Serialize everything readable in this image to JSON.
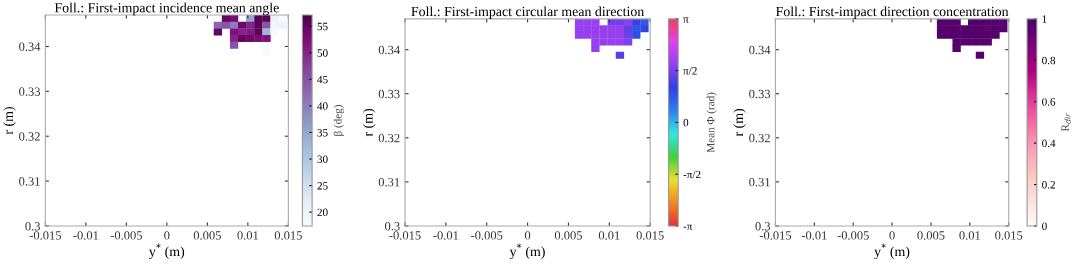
{
  "chart_data": [
    {
      "type": "scatter",
      "marker": "square",
      "title": "Foll.: First-impact incidence mean angle",
      "xlabel": "y$^{*}$ (m)",
      "ylabel": "r (m)",
      "clabel": "β (deg)",
      "x": [
        0.0073,
        0.0083,
        0.0103,
        0.0113,
        0.0123,
        0.0133,
        0.0143,
        0.0063,
        0.0073,
        0.0083,
        0.0093,
        0.0103,
        0.0113,
        0.0123,
        0.0133,
        0.0143,
        0.0063,
        0.0083,
        0.0093,
        0.0103,
        0.0113,
        0.0123,
        0.0133,
        0.0083,
        0.0093,
        0.0103,
        0.0113,
        0.0123,
        0.0083,
        0.0123
      ],
      "values": [
        0.34625,
        0.34625,
        0.34625,
        0.34625,
        0.34625,
        0.34625,
        0.34625,
        0.34475,
        0.34475,
        0.34475,
        0.34475,
        0.34475,
        0.34475,
        0.34475,
        0.34475,
        0.34475,
        0.34325,
        0.34325,
        0.34325,
        0.34325,
        0.34325,
        0.34325,
        0.34325,
        0.34175,
        0.34175,
        0.34175,
        0.34175,
        0.34175,
        0.34025,
        0.33875
      ],
      "cvalues": [
        55,
        53,
        35,
        56,
        56,
        20,
        18,
        43,
        45,
        40,
        54,
        50,
        56,
        45,
        19,
        20,
        55,
        52,
        50,
        51,
        56,
        33,
        18,
        50,
        55,
        54,
        53,
        52,
        45,
        18
      ],
      "xlim": [
        -0.015,
        0.015
      ],
      "xticks": [
        -0.015,
        -0.01,
        -0.005,
        0,
        0.005,
        0.01,
        0.015
      ],
      "ylim": [
        0.3,
        0.347
      ],
      "yticks": [
        0.3,
        0.31,
        0.32,
        0.33,
        0.34
      ],
      "clim": [
        17.4,
        57.1
      ],
      "cticks": [
        20,
        25,
        30,
        35,
        40,
        45,
        50,
        55
      ]
    },
    {
      "type": "scatter",
      "marker": "square",
      "title": "Foll.: First-impact circular mean direction",
      "xlabel": "y$^{*}$ (m)",
      "ylabel": "r (m)",
      "clabel": "Mean Φ (rad)",
      "x": [
        0.0063,
        0.0073,
        0.0083,
        0.0103,
        0.0113,
        0.0123,
        0.0133,
        0.0143,
        0.0063,
        0.0073,
        0.0083,
        0.0093,
        0.0103,
        0.0113,
        0.0123,
        0.0133,
        0.0143,
        0.0063,
        0.0073,
        0.0083,
        0.0093,
        0.0103,
        0.0113,
        0.0123,
        0.0133,
        0.0083,
        0.0093,
        0.0103,
        0.0113,
        0.0123,
        0.0083,
        0.0113
      ],
      "values": [
        0.34625,
        0.34625,
        0.34625,
        0.34625,
        0.34625,
        0.34625,
        0.34625,
        0.34625,
        0.34475,
        0.34475,
        0.34475,
        0.34475,
        0.34475,
        0.34475,
        0.34475,
        0.34475,
        0.34475,
        0.34325,
        0.34325,
        0.34325,
        0.34325,
        0.34325,
        0.34325,
        0.34325,
        0.34325,
        0.34175,
        0.34175,
        0.34175,
        0.34175,
        0.34175,
        0.34025,
        0.33875
      ],
      "cvalues": [
        1.8,
        1.8,
        1.8,
        1.5,
        1.5,
        1.7,
        1.1,
        0.8,
        1.8,
        1.8,
        1.8,
        1.8,
        1.8,
        1.8,
        1.4,
        0.8,
        1.0,
        1.8,
        1.8,
        1.8,
        1.8,
        1.8,
        1.8,
        1.5,
        0.9,
        1.8,
        1.8,
        1.8,
        1.8,
        1.6,
        1.8,
        1.3
      ],
      "xlim": [
        -0.015,
        0.015
      ],
      "xticks": [
        -0.015,
        -0.01,
        -0.005,
        0,
        0.005,
        0.01,
        0.015
      ],
      "ylim": [
        0.3,
        0.347
      ],
      "yticks": [
        0.3,
        0.31,
        0.32,
        0.33,
        0.34
      ],
      "clim": [
        -3.1416,
        3.1416
      ],
      "cticks": [
        {
          "value": -3.1416,
          "label": "-π"
        },
        {
          "value": -1.5708,
          "label": "-π/2"
        },
        0,
        {
          "value": 1.5708,
          "label": "π/2"
        },
        {
          "value": 3.1416,
          "label": "π"
        }
      ]
    },
    {
      "type": "scatter",
      "marker": "square",
      "title": "Foll.: First-impact direction concentration",
      "xlabel": "y$^{*}$ (m)",
      "ylabel": "r (m)",
      "clabel": "R$_{dir}$",
      "x": [
        0.0063,
        0.0073,
        0.0083,
        0.0103,
        0.0113,
        0.0123,
        0.0133,
        0.0143,
        0.0063,
        0.0073,
        0.0083,
        0.0093,
        0.0103,
        0.0113,
        0.0123,
        0.0133,
        0.0143,
        0.0063,
        0.0073,
        0.0083,
        0.0093,
        0.0103,
        0.0113,
        0.0123,
        0.0133,
        0.0083,
        0.0093,
        0.0103,
        0.0113,
        0.0123,
        0.0083,
        0.0113
      ],
      "values": [
        0.34625,
        0.34625,
        0.34625,
        0.34625,
        0.34625,
        0.34625,
        0.34625,
        0.34625,
        0.34475,
        0.34475,
        0.34475,
        0.34475,
        0.34475,
        0.34475,
        0.34475,
        0.34475,
        0.34475,
        0.34325,
        0.34325,
        0.34325,
        0.34325,
        0.34325,
        0.34325,
        0.34325,
        0.34325,
        0.34175,
        0.34175,
        0.34175,
        0.34175,
        0.34175,
        0.34025,
        0.33875
      ],
      "cvalues": [
        0.97,
        0.97,
        0.97,
        0.97,
        0.97,
        0.97,
        0.97,
        0.97,
        0.97,
        0.97,
        0.97,
        0.97,
        0.97,
        0.97,
        0.93,
        0.97,
        0.97,
        0.97,
        0.97,
        0.97,
        0.97,
        0.97,
        0.97,
        0.97,
        0.97,
        0.97,
        0.97,
        0.97,
        0.97,
        0.97,
        0.97,
        0.97
      ],
      "xlim": [
        -0.015,
        0.015
      ],
      "xticks": [
        -0.015,
        -0.01,
        -0.005,
        0,
        0.005,
        0.01,
        0.015
      ],
      "ylim": [
        0.3,
        0.347
      ],
      "yticks": [
        0.3,
        0.31,
        0.32,
        0.33,
        0.34
      ],
      "clim": [
        0,
        1
      ],
      "cticks": [
        0,
        0.2,
        0.4,
        0.6,
        0.8,
        1
      ]
    }
  ]
}
